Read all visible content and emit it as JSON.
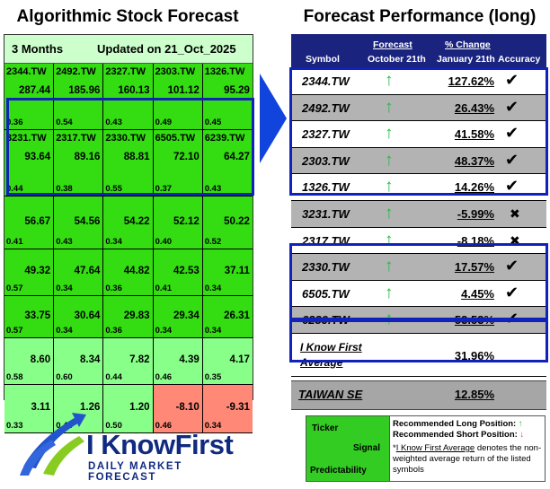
{
  "left": {
    "title": "Algorithmic Stock Forecast",
    "period": "3 Months",
    "updated": "Updated on 21_Oct_2025",
    "rows": [
      [
        {
          "ticker": "2344.TW",
          "signal": "287.44",
          "pred": "0.36"
        },
        {
          "ticker": "2492.TW",
          "signal": "185.96",
          "pred": "0.54"
        },
        {
          "ticker": "2327.TW",
          "signal": "160.13",
          "pred": "0.43"
        },
        {
          "ticker": "2303.TW",
          "signal": "101.12",
          "pred": "0.49"
        },
        {
          "ticker": "1326.TW",
          "signal": "95.29",
          "pred": "0.45"
        }
      ],
      [
        {
          "ticker": "3231.TW",
          "signal": "93.64",
          "pred": "0.44"
        },
        {
          "ticker": "2317.TW",
          "signal": "89.16",
          "pred": "0.38"
        },
        {
          "ticker": "2330.TW",
          "signal": "88.81",
          "pred": "0.55"
        },
        {
          "ticker": "6505.TW",
          "signal": "72.10",
          "pred": "0.37"
        },
        {
          "ticker": "6239.TW",
          "signal": "64.27",
          "pred": "0.43"
        }
      ],
      [
        {
          "ticker": "",
          "signal": "56.67",
          "pred": "0.41"
        },
        {
          "ticker": "",
          "signal": "54.56",
          "pred": "0.43"
        },
        {
          "ticker": "",
          "signal": "54.22",
          "pred": "0.34"
        },
        {
          "ticker": "",
          "signal": "52.12",
          "pred": "0.40"
        },
        {
          "ticker": "",
          "signal": "50.22",
          "pred": "0.52"
        }
      ],
      [
        {
          "ticker": "",
          "signal": "49.32",
          "pred": "0.57"
        },
        {
          "ticker": "",
          "signal": "47.64",
          "pred": "0.34"
        },
        {
          "ticker": "",
          "signal": "44.82",
          "pred": "0.36"
        },
        {
          "ticker": "",
          "signal": "42.53",
          "pred": "0.41"
        },
        {
          "ticker": "",
          "signal": "37.11",
          "pred": "0.34"
        }
      ],
      [
        {
          "ticker": "",
          "signal": "33.75",
          "pred": "0.57"
        },
        {
          "ticker": "",
          "signal": "30.64",
          "pred": "0.34"
        },
        {
          "ticker": "",
          "signal": "29.83",
          "pred": "0.36"
        },
        {
          "ticker": "",
          "signal": "29.34",
          "pred": "0.34"
        },
        {
          "ticker": "",
          "signal": "26.31",
          "pred": "0.34"
        }
      ],
      [
        {
          "ticker": "",
          "signal": "8.60",
          "pred": "0.58"
        },
        {
          "ticker": "",
          "signal": "8.34",
          "pred": "0.60"
        },
        {
          "ticker": "",
          "signal": "7.82",
          "pred": "0.44"
        },
        {
          "ticker": "",
          "signal": "4.39",
          "pred": "0.46"
        },
        {
          "ticker": "",
          "signal": "4.17",
          "pred": "0.35"
        }
      ],
      [
        {
          "ticker": "",
          "signal": "3.11",
          "pred": "0.33"
        },
        {
          "ticker": "",
          "signal": "1.26",
          "pred": "0.44"
        },
        {
          "ticker": "",
          "signal": "1.20",
          "pred": "0.50"
        },
        {
          "ticker": "",
          "signal": "-8.10",
          "pred": "0.46"
        },
        {
          "ticker": "",
          "signal": "-9.31",
          "pred": "0.34"
        }
      ]
    ]
  },
  "right": {
    "title": "Forecast Performance (long)",
    "headers": {
      "symbol": "Symbol",
      "forecast": "Forecast",
      "forecast_date": "October 21th",
      "change": "% Change",
      "change_date": "January 21th",
      "accuracy": "Accuracy"
    },
    "rows": [
      {
        "symbol": "2344.TW",
        "change": "127.62%",
        "accurate": true
      },
      {
        "symbol": "2492.TW",
        "change": "26.43%",
        "accurate": true
      },
      {
        "symbol": "2327.TW",
        "change": "41.58%",
        "accurate": true
      },
      {
        "symbol": "2303.TW",
        "change": "48.37%",
        "accurate": true
      },
      {
        "symbol": "1326.TW",
        "change": "14.26%",
        "accurate": true
      },
      {
        "symbol": "3231.TW",
        "change": "-5.99%",
        "accurate": false
      },
      {
        "symbol": "2317.TW",
        "change": "-8.18%",
        "accurate": false
      },
      {
        "symbol": "2330.TW",
        "change": "17.57%",
        "accurate": true
      },
      {
        "symbol": "6505.TW",
        "change": "4.45%",
        "accurate": true
      },
      {
        "symbol": "6239.TW",
        "change": "53.53%",
        "accurate": true
      }
    ],
    "average_label_1": "I Know First",
    "average_label_2": "Average",
    "average_value": "31.96%",
    "benchmark_label": "TAIWAN SE",
    "benchmark_value": "12.85%"
  },
  "logo": {
    "name": "I KnowFirst",
    "tagline": "DAILY MARKET FORECAST"
  },
  "legend": {
    "ticker": "Ticker",
    "signal": "Signal",
    "predictability": "Predictability",
    "long": "Recommended Long Position:",
    "short": "Recommended Short Position:",
    "note_link": "I Know First Average",
    "note_rest": " denotes the non-weighted average return of the listed symbols"
  },
  "colors": {
    "title_bar": "#1a237e",
    "highlight_border": "#1122bb",
    "up_arrow": "#22bb44",
    "down_arrow": "#dd3333",
    "strong_green": "#33dd11",
    "light_green": "#88ff88",
    "red_cell": "#ff8877"
  }
}
